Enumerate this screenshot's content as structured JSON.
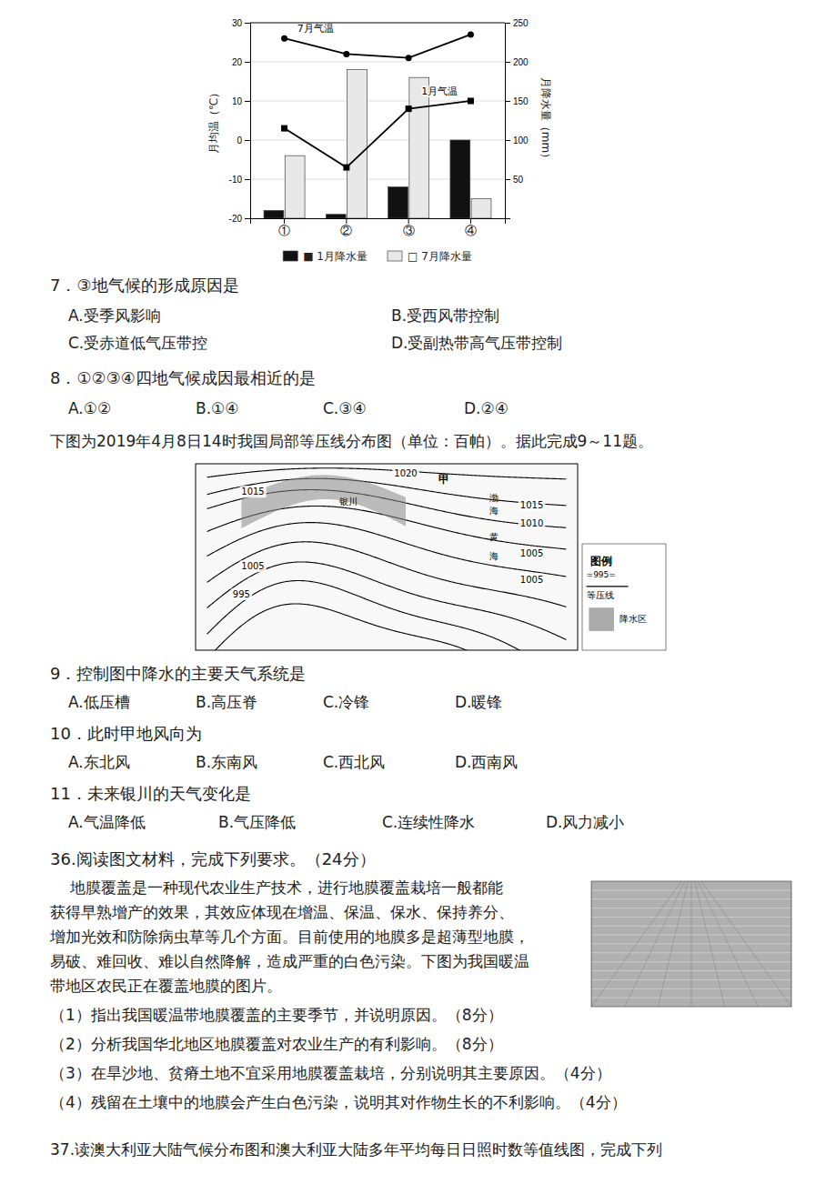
{
  "chart_data": {
    "type": "bar",
    "categories": [
      "①",
      "②",
      "③",
      "④"
    ],
    "ylabel": "月均温（℃）",
    "y2label": "月降水量（mm）",
    "ylim": [
      -20,
      30
    ],
    "yticks": [
      -20,
      -10,
      0,
      10,
      20,
      30
    ],
    "y2lim": [
      0,
      250
    ],
    "y2ticks": [
      50,
      100,
      150,
      200,
      250
    ],
    "grid": true,
    "legend": "bottom",
    "series": [
      {
        "name": "■ 1月降水量",
        "type": "bar",
        "axis": "y2",
        "color": "#111111",
        "values": [
          10,
          5,
          40,
          100
        ]
      },
      {
        "name": "□ 7月降水量",
        "type": "bar",
        "axis": "y2",
        "color": "#e8e8e8",
        "values": [
          80,
          190,
          180,
          25
        ]
      },
      {
        "name": "7月气温",
        "type": "line",
        "color": "#000000",
        "marker": "circle",
        "values": [
          26,
          22,
          21,
          27
        ]
      },
      {
        "name": "1月气温",
        "type": "line",
        "color": "#000000",
        "marker": "square",
        "values": [
          3,
          -7,
          8,
          10
        ]
      }
    ]
  },
  "page": {
    "q7_title": "7．③地气候的形成原因是",
    "q7_options": [
      [
        "A.受季风影响",
        "B.受西风带控制"
      ],
      [
        "C.受赤道低气压带控",
        "D.受副热带高气压带控制"
      ]
    ],
    "q8_title": "8．①②③④四地气候成因最相近的是",
    "q8_options": [
      "A.①②",
      "B.①④",
      "C.③④",
      "D.②④"
    ],
    "map_intro": "下图为2019年4月8日14时我国局部等压线分布图（单位：百帕）。据此完成9～11题。",
    "q9_title": "9．控制图中降水的主要天气系统是",
    "q9_options": [
      "A.低压槽",
      "B.高压脊",
      "C.冷锋",
      "D.暖锋"
    ],
    "q10_title": "10．此时甲地风向为",
    "q10_options": [
      "A.东北风",
      "B.东南风",
      "C.西北风",
      "D.西南风"
    ],
    "q11_title": "11．未来银川的天气变化是",
    "q11_options": [
      "A.气温降低",
      "B.气压降低",
      "C.连续性降水",
      "D.风力减小"
    ],
    "q36_title": "36.阅读图文材料，完成下列要求。（24分）",
    "q36_para": [
      "    地膜覆盖是一种现代农业生产技术，进行地膜覆盖栽培一般都能",
      "获得早熟增产的效果，其效应体现在增温、保温、保水、保持养分、",
      "增加光效和防除病虫草等几个方面。目前使用的地膜多是超薄型地膜，",
      "易破、难回收、难以自然降解，造成严重的白色污染。下图为我国暖温",
      "带地区农民正在覆盖地膜的图片。"
    ],
    "q36_subs": [
      "（1）指出我国暖温带地膜覆盖的主要季节，并说明原因。（8分）",
      "（2）分析我国华北地区地膜覆盖对农业生产的有利影响。（8分）",
      "（3）在旱沙地、贫瘠土地不宜采用地膜覆盖栽培，分别说明其主要原因。（4分）",
      "（4）残留在土壤中的地膜会产生白色污染，说明其对作物生长的不利影响。（4分）"
    ],
    "q37_text": "37.读澳大利亚大陆气候分布图和澳大利亚大陆多年平均每日日照时数等值线图，完成下列"
  },
  "map": {
    "isobar_labels": [
      "1020",
      "1015",
      "1015",
      "1010",
      "1005",
      "1005",
      "995",
      "1005"
    ],
    "place_labels": [
      "甲",
      "银川",
      "渤",
      "海",
      "黄",
      "海"
    ],
    "legend_title": "图例",
    "legend_isobar_sample": "=995=",
    "legend_isobar": "等压线",
    "legend_precip": "降水区"
  }
}
